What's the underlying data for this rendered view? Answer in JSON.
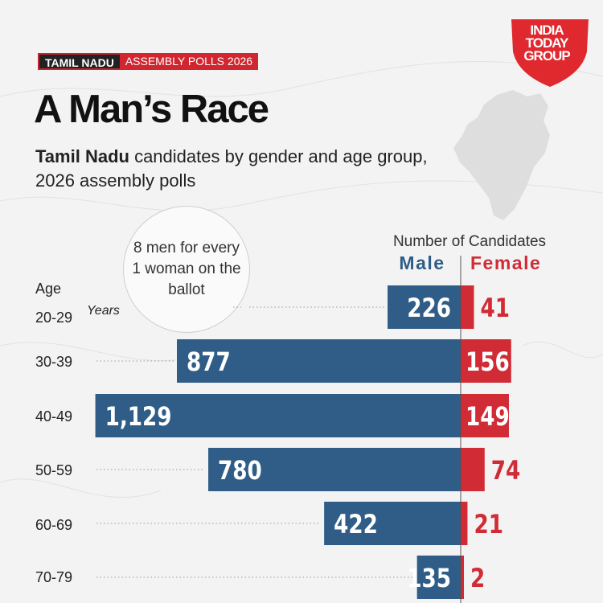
{
  "header": {
    "kicker_region": "TAMIL NADU",
    "kicker_event": "ASSEMBLY POLLS 2026",
    "headline": "A Man’s Race",
    "subtitle_bold": "Tamil Nadu",
    "subtitle_rest": " candidates by gender and age group, 2026 assembly polls"
  },
  "logo": {
    "line1": "INDIA",
    "line2": "TODAY",
    "line3": "GROUP"
  },
  "callout": {
    "text": "8 men for every 1 woman on the ballot"
  },
  "colors": {
    "male": "#2f5d87",
    "female": "#d12b35",
    "accent": "#d12630"
  },
  "chart_data": {
    "type": "bar",
    "orientation": "horizontal-diverging",
    "title": "Number of Candidates",
    "y_title": "Age",
    "y_unit": "Years",
    "categories": [
      "20-29",
      "30-39",
      "40-49",
      "50-59",
      "60-69",
      "70-79"
    ],
    "series": [
      {
        "name": "Male",
        "values": [
          226,
          877,
          1129,
          780,
          422,
          135
        ],
        "labels": [
          "226",
          "877",
          "1,129",
          "780",
          "422",
          "135"
        ]
      },
      {
        "name": "Female",
        "values": [
          41,
          156,
          149,
          74,
          21,
          2
        ],
        "labels": [
          "41",
          "156",
          "149",
          "74",
          "21",
          "2"
        ]
      }
    ]
  }
}
